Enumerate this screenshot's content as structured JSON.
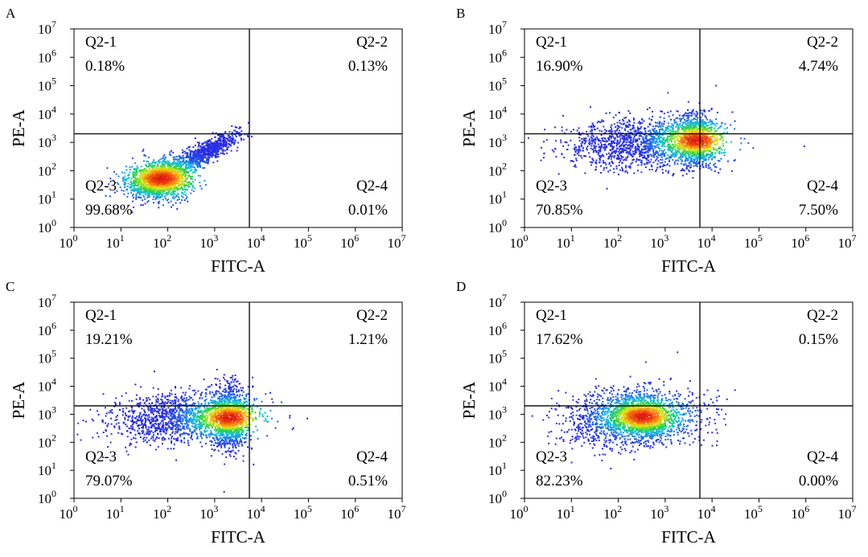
{
  "chart_data": [
    {
      "type": "scatter",
      "panel_label": "A",
      "xlabel": "FITC-A",
      "ylabel": "PE-A",
      "scale": "log10",
      "xlim": [
        1,
        10000000
      ],
      "ylim": [
        1,
        10000000
      ],
      "tick_exponents": [
        0,
        1,
        2,
        3,
        4,
        5,
        6,
        7
      ],
      "gate": {
        "x": 5500,
        "y": 2000
      },
      "quadrants": [
        {
          "name": "Q2-1",
          "percent": "0.18%"
        },
        {
          "name": "Q2-2",
          "percent": "0.13%"
        },
        {
          "name": "Q2-3",
          "percent": "99.68%"
        },
        {
          "name": "Q2-4",
          "percent": "0.01%"
        }
      ],
      "density": {
        "clusters": [
          {
            "log_center": [
              1.8,
              1.7
            ],
            "spread": [
              0.35,
              0.3
            ],
            "rotation_deg": 42,
            "weight": 0.7
          },
          {
            "log_center": [
              2.8,
              2.7
            ],
            "spread": [
              0.45,
              0.14
            ],
            "rotation_deg": 44,
            "weight": 0.3
          }
        ],
        "peak_log": [
          1.85,
          1.75
        ]
      }
    },
    {
      "type": "scatter",
      "panel_label": "B",
      "xlabel": "FITC-A",
      "ylabel": "PE-A",
      "scale": "log10",
      "xlim": [
        1,
        10000000
      ],
      "ylim": [
        1,
        10000000
      ],
      "tick_exponents": [
        0,
        1,
        2,
        3,
        4,
        5,
        6,
        7
      ],
      "gate": {
        "x": 5500,
        "y": 2000
      },
      "quadrants": [
        {
          "name": "Q2-1",
          "percent": "16.90%"
        },
        {
          "name": "Q2-2",
          "percent": "4.74%"
        },
        {
          "name": "Q2-3",
          "percent": "70.85%"
        },
        {
          "name": "Q2-4",
          "percent": "7.50%"
        }
      ],
      "density": {
        "clusters": [
          {
            "log_center": [
              2.5,
              3.0
            ],
            "spread": [
              0.8,
              0.45
            ],
            "rotation_deg": 5,
            "weight": 0.55
          },
          {
            "log_center": [
              3.65,
              3.1
            ],
            "spread": [
              0.22,
              0.45
            ],
            "rotation_deg": 0,
            "weight": 0.45
          }
        ],
        "peak_log": [
          3.65,
          3.1
        ]
      }
    },
    {
      "type": "scatter",
      "panel_label": "C",
      "xlabel": "FITC-A",
      "ylabel": "PE-A",
      "scale": "log10",
      "xlim": [
        1,
        10000000
      ],
      "ylim": [
        1,
        10000000
      ],
      "tick_exponents": [
        0,
        1,
        2,
        3,
        4,
        5,
        6,
        7
      ],
      "gate": {
        "x": 5500,
        "y": 2000
      },
      "quadrants": [
        {
          "name": "Q2-1",
          "percent": "19.21%"
        },
        {
          "name": "Q2-2",
          "percent": "1.21%"
        },
        {
          "name": "Q2-3",
          "percent": "79.07%"
        },
        {
          "name": "Q2-4",
          "percent": "0.51%"
        }
      ],
      "density": {
        "clusters": [
          {
            "log_center": [
              2.3,
              2.9
            ],
            "spread": [
              0.8,
              0.45
            ],
            "rotation_deg": 5,
            "weight": 0.55
          },
          {
            "log_center": [
              3.3,
              2.9
            ],
            "spread": [
              0.2,
              0.55
            ],
            "rotation_deg": 0,
            "weight": 0.45
          }
        ],
        "peak_log": [
          3.3,
          2.9
        ]
      }
    },
    {
      "type": "scatter",
      "panel_label": "D",
      "xlabel": "FITC-A",
      "ylabel": "PE-A",
      "scale": "log10",
      "xlim": [
        1,
        10000000
      ],
      "ylim": [
        1,
        10000000
      ],
      "tick_exponents": [
        0,
        1,
        2,
        3,
        4,
        5,
        6,
        7
      ],
      "gate": {
        "x": 5500,
        "y": 2000
      },
      "quadrants": [
        {
          "name": "Q2-1",
          "percent": "17.62%"
        },
        {
          "name": "Q2-2",
          "percent": "0.15%"
        },
        {
          "name": "Q2-3",
          "percent": "82.23%"
        },
        {
          "name": "Q2-4",
          "percent": "0.00%"
        }
      ],
      "density": {
        "clusters": [
          {
            "log_center": [
              2.3,
              2.9
            ],
            "spread": [
              0.7,
              0.5
            ],
            "rotation_deg": 10,
            "weight": 0.65
          },
          {
            "log_center": [
              2.5,
              2.9
            ],
            "spread": [
              0.25,
              0.35
            ],
            "rotation_deg": 30,
            "weight": 0.35
          }
        ],
        "peak_log": [
          2.5,
          2.95
        ]
      }
    }
  ]
}
